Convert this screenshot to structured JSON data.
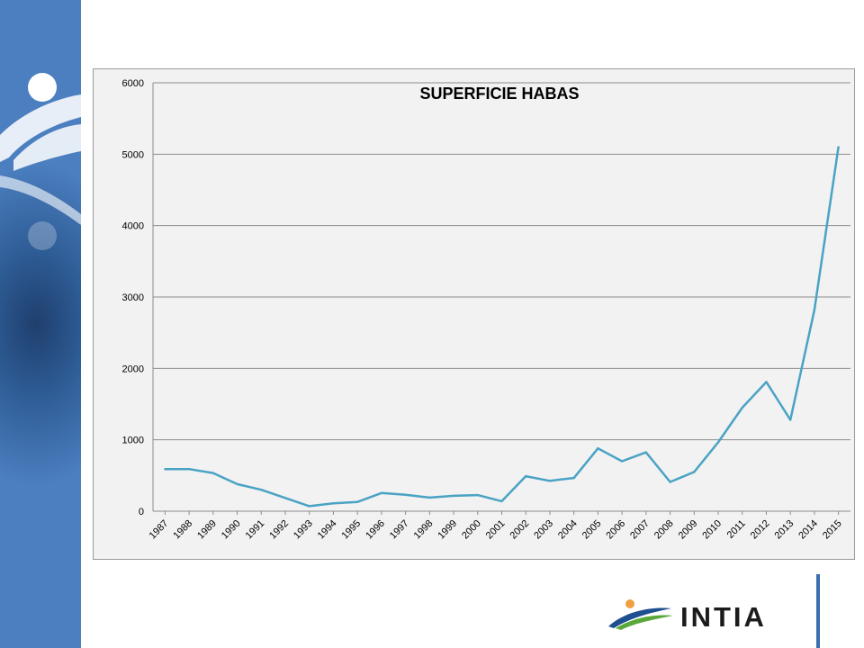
{
  "chart_data": {
    "type": "line",
    "title": "SUPERFICIE HABAS",
    "categories": [
      "1987",
      "1988",
      "1989",
      "1990",
      "1991",
      "1992",
      "1993",
      "1994",
      "1995",
      "1996",
      "1997",
      "1998",
      "1999",
      "2000",
      "2001",
      "2002",
      "2003",
      "2004",
      "2005",
      "2006",
      "2007",
      "2008",
      "2009",
      "2010",
      "2011",
      "2012",
      "2013",
      "2014",
      "2015"
    ],
    "series": [
      {
        "values": [
          590,
          590,
          535,
          380,
          300,
          185,
          70,
          110,
          130,
          255,
          230,
          190,
          215,
          225,
          140,
          490,
          425,
          465,
          880,
          700,
          825,
          410,
          550,
          965,
          1450,
          1810,
          1280,
          2820,
          5100
        ]
      }
    ],
    "yticks": [
      "0",
      "1000",
      "2000",
      "3000",
      "4000",
      "5000",
      "6000"
    ],
    "ylim": [
      0,
      6000
    ],
    "grid": true,
    "legend": "none",
    "line_color": "#4aa3c4"
  },
  "logo": {
    "text": "INTIA"
  }
}
